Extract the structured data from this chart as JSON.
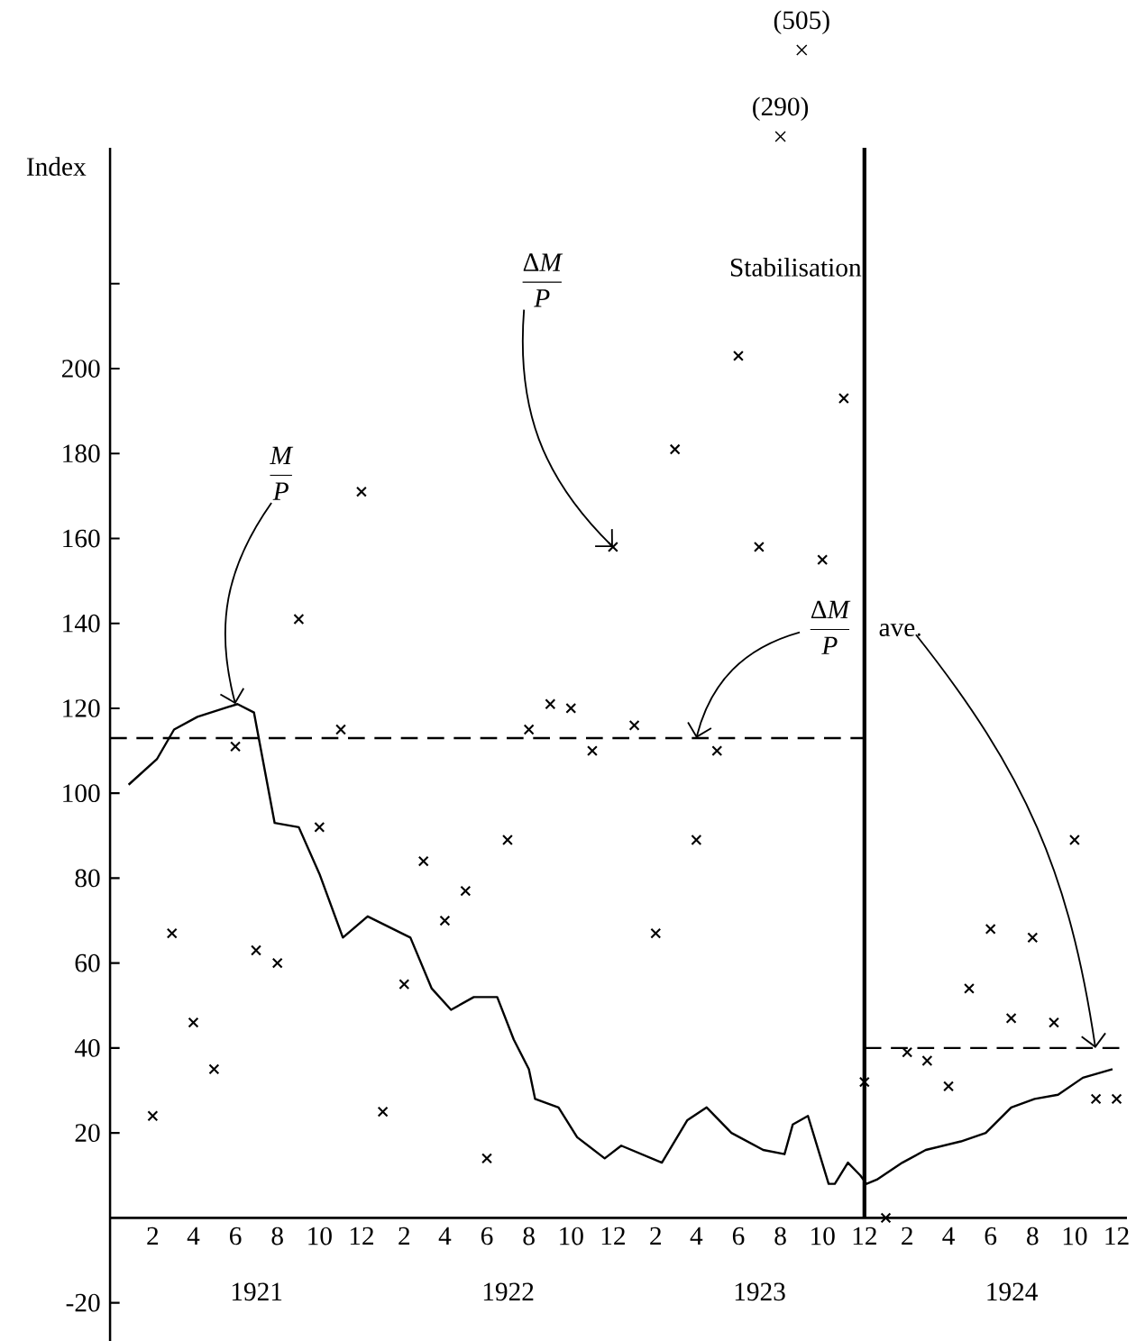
{
  "chart_data": {
    "type": "line",
    "ylabel": "Index",
    "xlim": [
      "1920-12",
      "1924-12-16"
    ],
    "ylim": [
      -29,
      252
    ],
    "xticks": [
      {
        "value": "1921-02",
        "label": "2"
      },
      {
        "value": "1921-04",
        "label": "4"
      },
      {
        "value": "1921-06",
        "label": "6"
      },
      {
        "value": "1921-08",
        "label": "8"
      },
      {
        "value": "1921-10",
        "label": "10"
      },
      {
        "value": "1921-12",
        "label": "12"
      },
      {
        "value": "1922-02",
        "label": "2"
      },
      {
        "value": "1922-04",
        "label": "4"
      },
      {
        "value": "1922-06",
        "label": "6"
      },
      {
        "value": "1922-08",
        "label": "8"
      },
      {
        "value": "1922-10",
        "label": "10"
      },
      {
        "value": "1922-12",
        "label": "12"
      },
      {
        "value": "1923-02",
        "label": "2"
      },
      {
        "value": "1923-04",
        "label": "4"
      },
      {
        "value": "1923-06",
        "label": "6"
      },
      {
        "value": "1923-08",
        "label": "8"
      },
      {
        "value": "1923-10",
        "label": "10"
      },
      {
        "value": "1923-12",
        "label": "12"
      },
      {
        "value": "1924-02",
        "label": "2"
      },
      {
        "value": "1924-04",
        "label": "4"
      },
      {
        "value": "1924-06",
        "label": "6"
      },
      {
        "value": "1924-08",
        "label": "8"
      },
      {
        "value": "1924-10",
        "label": "10"
      },
      {
        "value": "1924-12",
        "label": "12"
      }
    ],
    "yticks": [
      -20,
      20,
      40,
      60,
      80,
      100,
      120,
      140,
      160,
      180,
      200,
      {
        "value": 220,
        "label": null
      }
    ],
    "series": [
      {
        "color": "#000000",
        "marker": "none",
        "line_style": "solid",
        "x": [
          "1920-12-28",
          "1921-02-07",
          "1921-03-04",
          "1921-04-07",
          "1921-06-04",
          "1921-06-28",
          "1921-07-28",
          "1921-09-01",
          "1921-10-01",
          "1921-11-04",
          "1921-12-10",
          "1922-02-10",
          "1922-03-13",
          "1922-04-10",
          "1922-05-13",
          "1922-06-16",
          "1922-07-10",
          "1922-08-01",
          "1922-08-10",
          "1922-09-13",
          "1922-10-10",
          "1922-11-19",
          "1922-12-13",
          "1923-02-10",
          "1923-03-19",
          "1923-04-16",
          "1923-05-22",
          "1923-07-07",
          "1923-08-07",
          "1923-08-19",
          "1923-09-10",
          "1923-10-10",
          "1923-10-19",
          "1923-11-07",
          "1923-11-25",
          "1923-12-04",
          "1923-12-19",
          "1924-01-25",
          "1924-02-28",
          "1924-04-19",
          "1924-05-25",
          "1924-07-01",
          "1924-08-04",
          "1924-09-07",
          "1924-10-13",
          "1924-11-25"
        ],
        "values": [
          102,
          108,
          115,
          118,
          121,
          119,
          93,
          92,
          81,
          66,
          71,
          66,
          54,
          49,
          52,
          52,
          42,
          35,
          28,
          26,
          19,
          14,
          17,
          13,
          23,
          26,
          20,
          16,
          15,
          22,
          24,
          8,
          8,
          13,
          10,
          8,
          9,
          13,
          16,
          18,
          20,
          26,
          28,
          29,
          33,
          35
        ]
      },
      {
        "type": "scatter",
        "color": "#000000",
        "marker": "cross",
        "x": [
          "1921-02",
          "1921-03",
          "1921-04",
          "1921-05",
          "1921-06",
          "1921-07",
          "1921-08",
          "1921-09",
          "1921-10",
          "1921-11",
          "1921-12",
          "1922-01",
          "1922-02",
          "1922-03",
          "1922-04",
          "1922-05",
          "1922-06",
          "1922-07",
          "1922-08",
          "1922-09",
          "1922-10",
          "1922-11",
          "1922-12",
          "1923-01",
          "1923-02",
          "1923-03",
          "1923-04",
          "1923-05",
          "1923-06",
          "1923-07",
          "1923-08",
          "1923-09",
          "1923-10",
          "1923-11",
          "1923-12",
          "1924-01",
          "1924-02",
          "1924-03",
          "1924-04",
          "1924-05",
          "1924-06",
          "1924-07",
          "1924-08",
          "1924-09",
          "1924-10",
          "1924-11",
          "1924-12"
        ],
        "values": [
          24,
          67,
          46,
          35,
          111,
          63,
          60,
          141,
          92,
          115,
          171,
          25,
          55,
          84,
          70,
          77,
          14,
          89,
          115,
          121,
          120,
          110,
          158,
          116,
          67,
          181,
          89,
          110,
          203,
          158,
          null,
          null,
          155,
          193,
          32,
          0,
          39,
          37,
          31,
          54,
          68,
          47,
          66,
          46,
          89,
          28,
          28
        ]
      },
      {
        "color": "#000000",
        "marker": "none",
        "line_style": "dashed",
        "x": [
          "1920-12",
          "1923-12"
        ],
        "values": [
          113,
          113
        ]
      },
      {
        "color": "#000000",
        "marker": "none",
        "line_style": "dashed",
        "x": [
          "1923-12",
          "1924-12-16"
        ],
        "values": [
          40,
          40
        ]
      }
    ],
    "ref_lines": [
      {
        "axis": "x",
        "value": "1923-12",
        "label": "Stabilisation"
      }
    ],
    "annotations": [
      {
        "text": "\\frac{\\mathit{M}}{\\mathit{P}}",
        "x": "1921-06",
        "y": 121
      },
      {
        "text": "\\frac{\\mathrm{Δ}\\mathit{M}}{\\mathit{P}}",
        "x": "1922-12",
        "y": 158
      },
      {
        "text": "\\frac{\\mathrm{Δ}\\mathit{M}}{\\mathit{P}}\\quad\\mathrm{ave.}",
        "x": "1923-04",
        "y": 113
      },
      "1921",
      "1922",
      "1923",
      "1924",
      "(290)",
      "×",
      "(505)",
      "×"
    ]
  }
}
